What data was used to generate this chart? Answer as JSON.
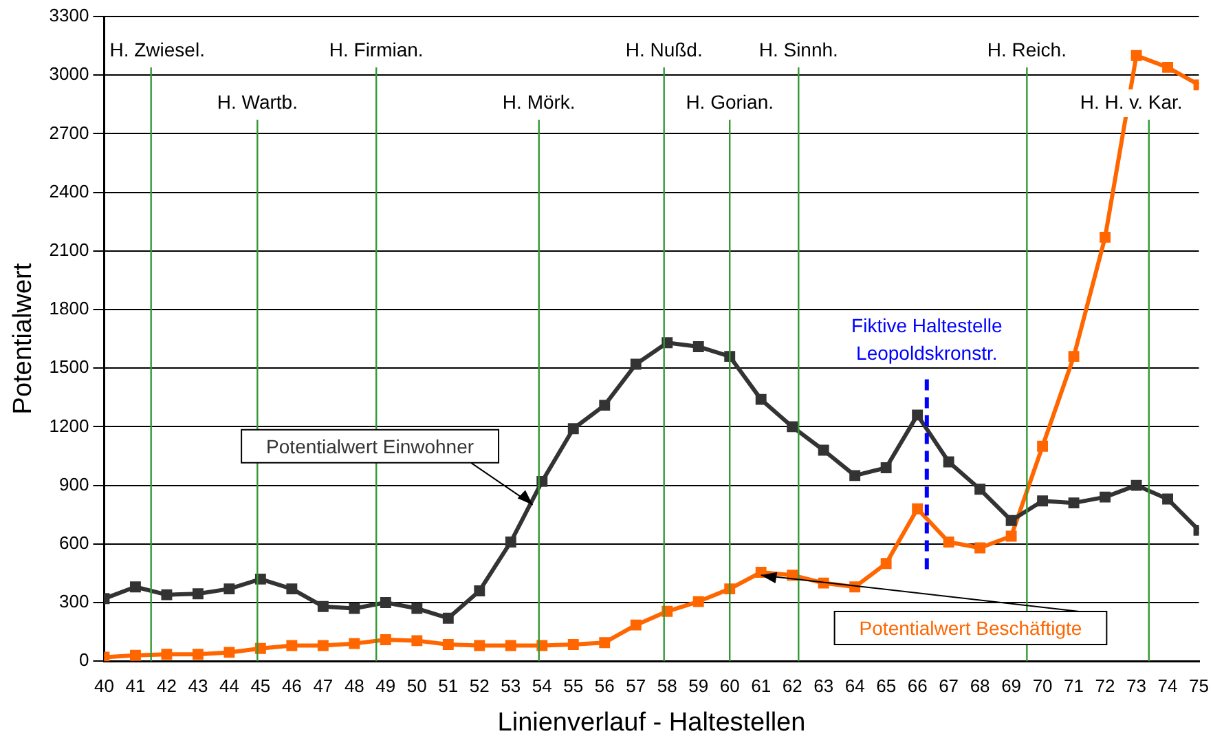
{
  "chart_data": {
    "type": "line",
    "xlabel": "Linienverlauf - Haltestellen",
    "ylabel": "Potentialwert",
    "x": [
      40,
      41,
      42,
      43,
      44,
      45,
      46,
      47,
      48,
      49,
      50,
      51,
      52,
      53,
      54,
      55,
      56,
      57,
      58,
      59,
      60,
      61,
      62,
      63,
      64,
      65,
      66,
      67,
      68,
      69,
      70,
      71,
      72,
      73,
      74,
      75
    ],
    "xlim": [
      40,
      75
    ],
    "xticks": [
      40,
      41,
      42,
      43,
      44,
      45,
      46,
      47,
      48,
      49,
      50,
      51,
      52,
      53,
      54,
      55,
      56,
      57,
      58,
      59,
      60,
      61,
      62,
      63,
      64,
      65,
      66,
      67,
      68,
      69,
      70,
      71,
      72,
      73,
      74,
      75
    ],
    "ylim": [
      0,
      3300
    ],
    "yticks": [
      0,
      300,
      600,
      900,
      1200,
      1500,
      1800,
      2100,
      2400,
      2700,
      3000,
      3300
    ],
    "grid": "y",
    "marker": "square",
    "line_style": "solid",
    "legend": false,
    "series": [
      {
        "name": "Potentialwert Einwohner",
        "color": "#333333",
        "values": [
          320,
          380,
          340,
          345,
          370,
          420,
          370,
          280,
          270,
          300,
          270,
          220,
          360,
          610,
          920,
          1190,
          1310,
          1520,
          1630,
          1610,
          1560,
          1340,
          1200,
          1080,
          950,
          990,
          1260,
          1020,
          880,
          720,
          820,
          810,
          840,
          900,
          830,
          670
        ]
      },
      {
        "name": "Potentialwert Beschäftigte",
        "color": "#ff6600",
        "values": [
          20,
          30,
          35,
          35,
          45,
          65,
          80,
          80,
          90,
          110,
          105,
          85,
          80,
          80,
          80,
          85,
          95,
          185,
          255,
          305,
          370,
          455,
          440,
          400,
          380,
          500,
          780,
          610,
          580,
          640,
          1100,
          1560,
          2170,
          3100,
          3040,
          2950
        ]
      }
    ],
    "ref_lines": [
      {
        "axis": "x",
        "value": 41.5,
        "label": "H. Zwiesel.",
        "color": "#339933"
      },
      {
        "axis": "x",
        "value": 44.9,
        "label": "H. Wartb.",
        "color": "#339933"
      },
      {
        "axis": "x",
        "value": 48.7,
        "label": "H. Firmian.",
        "color": "#339933"
      },
      {
        "axis": "x",
        "value": 53.9,
        "label": "H. Mörk.",
        "color": "#339933"
      },
      {
        "axis": "x",
        "value": 57.9,
        "label": "H. Nußd.",
        "color": "#339933"
      },
      {
        "axis": "x",
        "value": 60,
        "label": "H. Gorian.",
        "color": "#339933"
      },
      {
        "axis": "x",
        "value": 62.2,
        "label": "H. Sinnh.",
        "color": "#339933"
      },
      {
        "axis": "x",
        "value": 69.5,
        "label": "H. Reich.",
        "color": "#339933"
      },
      {
        "axis": "x",
        "value": 73.4,
        "label": "H. H. v. Kar.",
        "color": "#339933"
      },
      {
        "axis": "x",
        "value": 66.3,
        "label": "Fiktive Haltestelle Leopoldskronstr.",
        "color": "#0000ff",
        "line_style": "dashed"
      }
    ]
  }
}
